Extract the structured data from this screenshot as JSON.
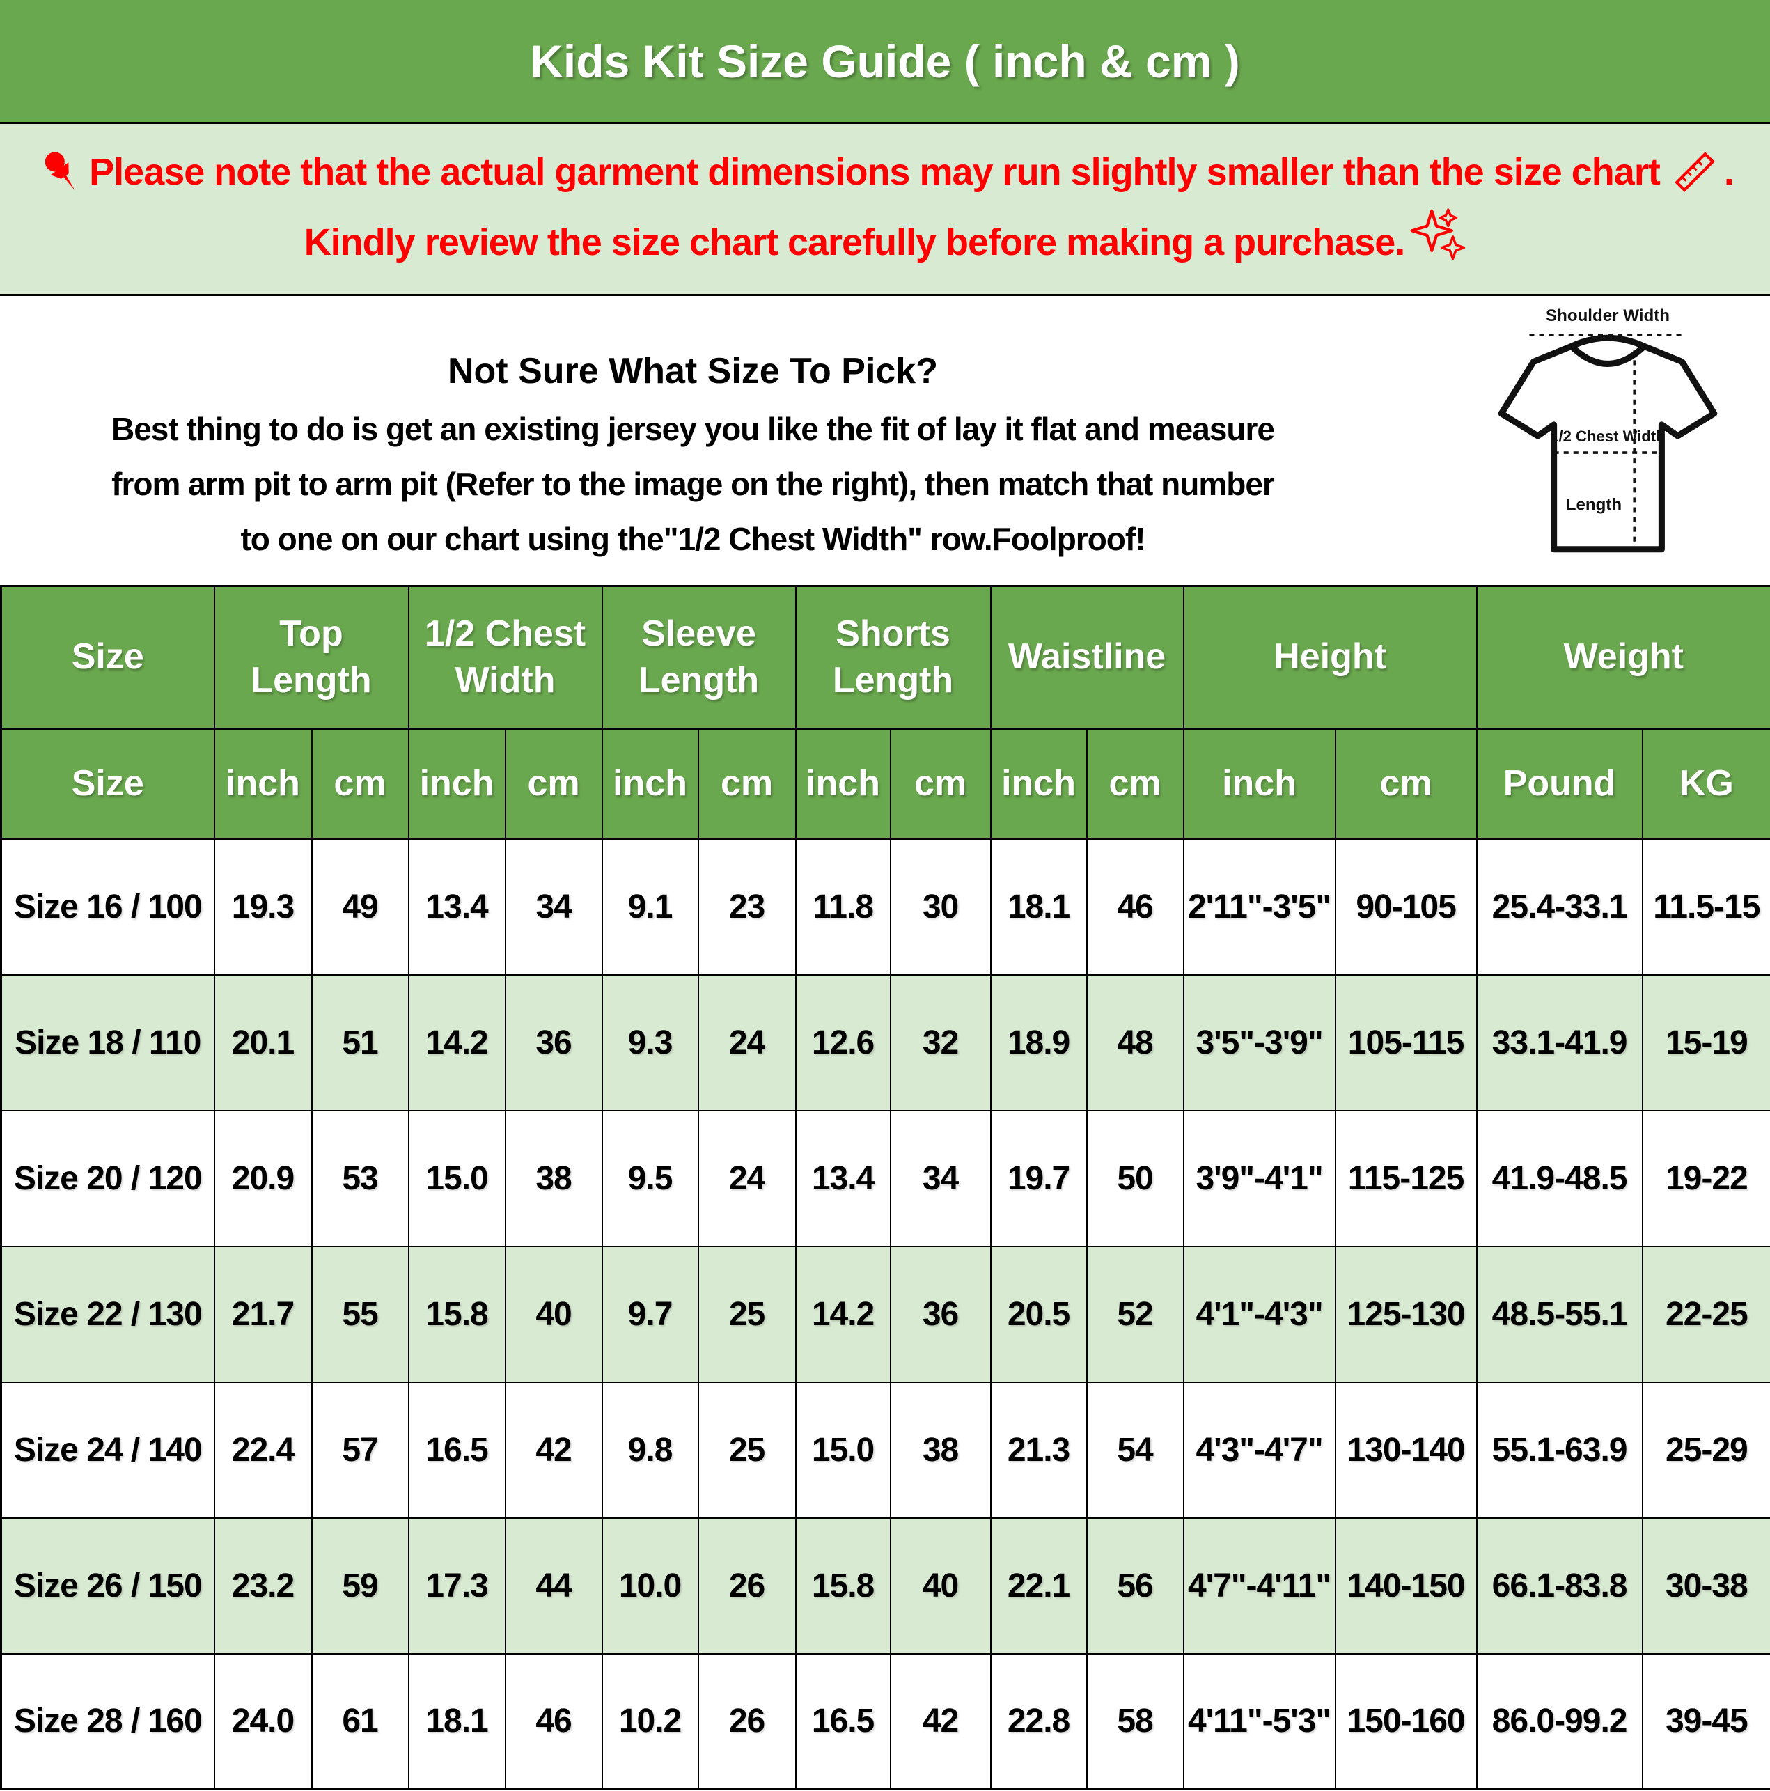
{
  "title_bar": {
    "title": "Kids Kit Size Guide ( inch & cm )"
  },
  "notice": {
    "line1_text": "Please note that the actual garment dimensions may run slightly smaller than the size chart",
    "line1_period": ".",
    "line2_text": "Kindly review the size chart carefully before making a purchase."
  },
  "icons": {
    "notice_start": "pushpin-icon",
    "notice_line1_end": "ruler-icon",
    "notice_line2_end": "sparkles-icon"
  },
  "size_help": {
    "heading": "Not Sure What Size To Pick?",
    "line1": "Best thing to do is get an existing jersey you like the fit of lay it flat and measure",
    "line2": "from arm pit to arm pit (Refer to the image on the right), then match that number",
    "line3": "to one on our chart using the\"1/2 Chest Width\" row.Foolproof!"
  },
  "diagram": {
    "shoulder_label": "Shoulder Width",
    "chest_label": "1/2 Chest Width",
    "length_label": "Length"
  },
  "table": {
    "group_headers": [
      {
        "label": "Size",
        "span": 1
      },
      {
        "label": "Top Length",
        "span": 2
      },
      {
        "label": "1/2 Chest Width",
        "span": 2
      },
      {
        "label": "Sleeve Length",
        "span": 2
      },
      {
        "label": "Shorts Length",
        "span": 2
      },
      {
        "label": "Waistline",
        "span": 2
      },
      {
        "label": "Height",
        "span": 2
      },
      {
        "label": "Weight",
        "span": 2
      }
    ],
    "sub_headers": [
      "Size",
      "inch",
      "cm",
      "inch",
      "cm",
      "inch",
      "cm",
      "inch",
      "cm",
      "inch",
      "cm",
      "inch",
      "cm",
      "Pound",
      "KG"
    ],
    "rows": [
      [
        "Size 16 / 100",
        "19.3",
        "49",
        "13.4",
        "34",
        "9.1",
        "23",
        "11.8",
        "30",
        "18.1",
        "46",
        "2'11\"-3'5\"",
        "90-105",
        "25.4-33.1",
        "11.5-15"
      ],
      [
        "Size 18 / 110",
        "20.1",
        "51",
        "14.2",
        "36",
        "9.3",
        "24",
        "12.6",
        "32",
        "18.9",
        "48",
        "3'5\"-3'9\"",
        "105-115",
        "33.1-41.9",
        "15-19"
      ],
      [
        "Size 20 / 120",
        "20.9",
        "53",
        "15.0",
        "38",
        "9.5",
        "24",
        "13.4",
        "34",
        "19.7",
        "50",
        "3'9\"-4'1\"",
        "115-125",
        "41.9-48.5",
        "19-22"
      ],
      [
        "Size 22 / 130",
        "21.7",
        "55",
        "15.8",
        "40",
        "9.7",
        "25",
        "14.2",
        "36",
        "20.5",
        "52",
        "4'1\"-4'3\"",
        "125-130",
        "48.5-55.1",
        "22-25"
      ],
      [
        "Size 24 / 140",
        "22.4",
        "57",
        "16.5",
        "42",
        "9.8",
        "25",
        "15.0",
        "38",
        "21.3",
        "54",
        "4'3\"-4'7\"",
        "130-140",
        "55.1-63.9",
        "25-29"
      ],
      [
        "Size 26 / 150",
        "23.2",
        "59",
        "17.3",
        "44",
        "10.0",
        "26",
        "15.8",
        "40",
        "22.1",
        "56",
        "4'7\"-4'11\"",
        "140-150",
        "66.1-83.8",
        "30-38"
      ],
      [
        "Size 28 / 160",
        "24.0",
        "61",
        "18.1",
        "46",
        "10.2",
        "26",
        "16.5",
        "42",
        "22.8",
        "58",
        "4'11\"-5'3\"",
        "150-160",
        "86.0-99.2",
        "39-45"
      ]
    ]
  },
  "colors": {
    "header_green": "#6aa84f",
    "band_green": "#d9ead3",
    "notice_red": "#ff0000",
    "text_black": "#000000",
    "text_white": "#ffffff"
  }
}
